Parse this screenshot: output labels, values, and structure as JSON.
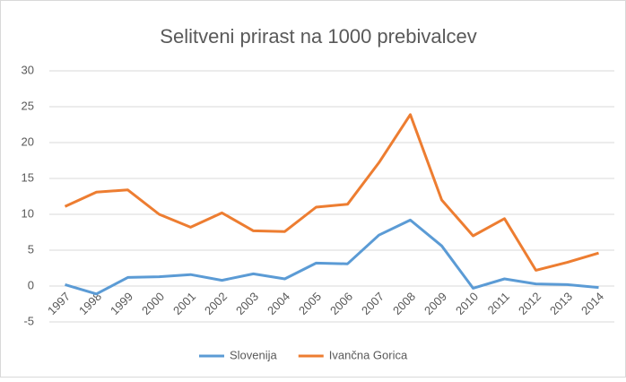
{
  "chart_data": {
    "type": "line",
    "title": "Selitveni prirast na 1000 prebivalcev",
    "categories": [
      "1997",
      "1998",
      "1999",
      "2000",
      "2001",
      "2002",
      "2003",
      "2004",
      "2005",
      "2006",
      "2007",
      "2008",
      "2009",
      "2010",
      "2011",
      "2012",
      "2013",
      "2014"
    ],
    "series": [
      {
        "name": "Slovenija",
        "color": "#5b9bd5",
        "values": [
          0.2,
          -1.1,
          1.2,
          1.3,
          1.6,
          0.8,
          1.7,
          1.0,
          3.2,
          3.1,
          7.1,
          9.2,
          5.6,
          -0.3,
          1.0,
          0.3,
          0.2,
          -0.2
        ]
      },
      {
        "name": "Ivančna Gorica",
        "color": "#ed7d31",
        "values": [
          11.1,
          13.1,
          13.4,
          10.0,
          8.2,
          10.2,
          7.7,
          7.6,
          11.0,
          11.4,
          17.2,
          23.9,
          12.0,
          7.0,
          9.4,
          2.2,
          3.3,
          4.6
        ]
      }
    ],
    "ylim": [
      -5,
      30
    ],
    "yticks": [
      -5,
      0,
      5,
      10,
      15,
      20,
      25,
      30
    ],
    "grid": true,
    "legend": "bottom"
  }
}
